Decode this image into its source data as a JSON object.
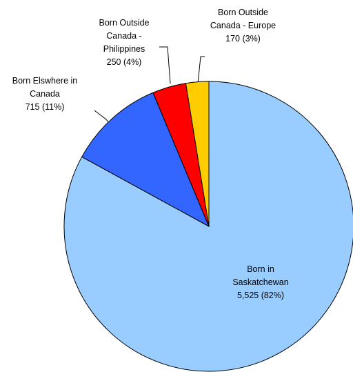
{
  "chart_data": {
    "type": "pie",
    "categories": [
      "Born in Saskatchewan",
      "Born Elswhere in Canada",
      "Born Outside Canada - Philippines",
      "Born Outside Canada - Europe"
    ],
    "values": [
      5525,
      715,
      250,
      170
    ],
    "value_labels": [
      "5,525 (82%)",
      "715 (11%)",
      "250 (4%)",
      "170 (3%)"
    ],
    "colors": [
      "#99ccff",
      "#3366ff",
      "#ff0000",
      "#ffcc00"
    ]
  }
}
